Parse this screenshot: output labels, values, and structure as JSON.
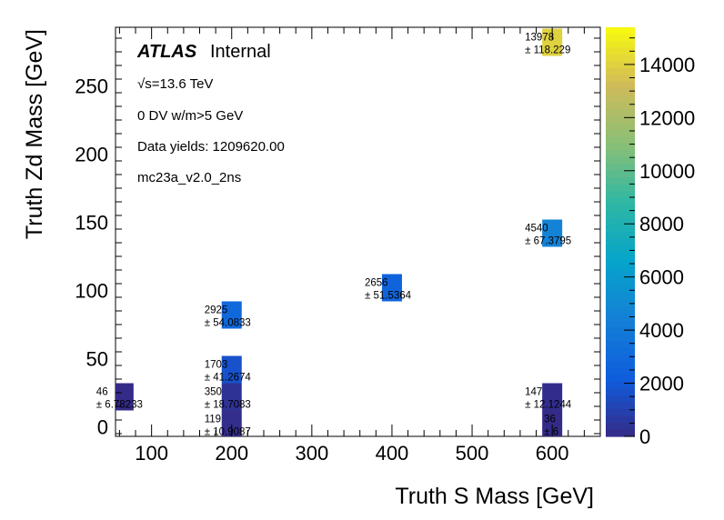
{
  "chart_data": {
    "type": "heatmap",
    "xlabel": "Truth S Mass [GeV]",
    "ylabel": "Truth Zd Mass [GeV]",
    "xlim": [
      55,
      660
    ],
    "ylim": [
      -7,
      293
    ],
    "xticks": [
      100,
      200,
      300,
      400,
      500,
      600
    ],
    "yticks": [
      0,
      50,
      100,
      150,
      200,
      250
    ],
    "zlim": [
      0,
      15400
    ],
    "zticks": [
      0,
      2000,
      4000,
      6000,
      8000,
      10000,
      12000,
      14000
    ],
    "cell_width": 25,
    "cell_height": 20,
    "cells": [
      {
        "x": 65,
        "y": 22,
        "value": 46,
        "label": "46",
        "error": "± 6.78233"
      },
      {
        "x": 200,
        "y": 2,
        "value": 119,
        "label": "119",
        "error": "± 10.9087"
      },
      {
        "x": 200,
        "y": 22,
        "value": 350,
        "label": "350",
        "error": "± 18.7083"
      },
      {
        "x": 200,
        "y": 42,
        "value": 1703,
        "label": "1703",
        "error": "± 41.2674"
      },
      {
        "x": 200,
        "y": 82,
        "value": 2925,
        "label": "2925",
        "error": "± 54.0833"
      },
      {
        "x": 400,
        "y": 102,
        "value": 2656,
        "label": "2656",
        "error": "± 51.5364"
      },
      {
        "x": 600,
        "y": 2,
        "value": 36,
        "label": "36",
        "error": "± 6"
      },
      {
        "x": 600,
        "y": 22,
        "value": 147,
        "label": "147",
        "error": "± 12.1244"
      },
      {
        "x": 600,
        "y": 142,
        "value": 4540,
        "label": "4540",
        "error": "± 67.3795"
      },
      {
        "x": 600,
        "y": 282,
        "value": 13978,
        "label": "13978",
        "error": "± 118.229"
      }
    ]
  },
  "annotations": {
    "atlas": "ATLAS",
    "atlas_suffix": "Internal",
    "sqrt_s": "√s=13.6 TeV",
    "selection": "0 DV w/m>5 GeV",
    "yields": "Data yields: 1209620.00",
    "sample": "mc23a_v2.0_2ns"
  }
}
